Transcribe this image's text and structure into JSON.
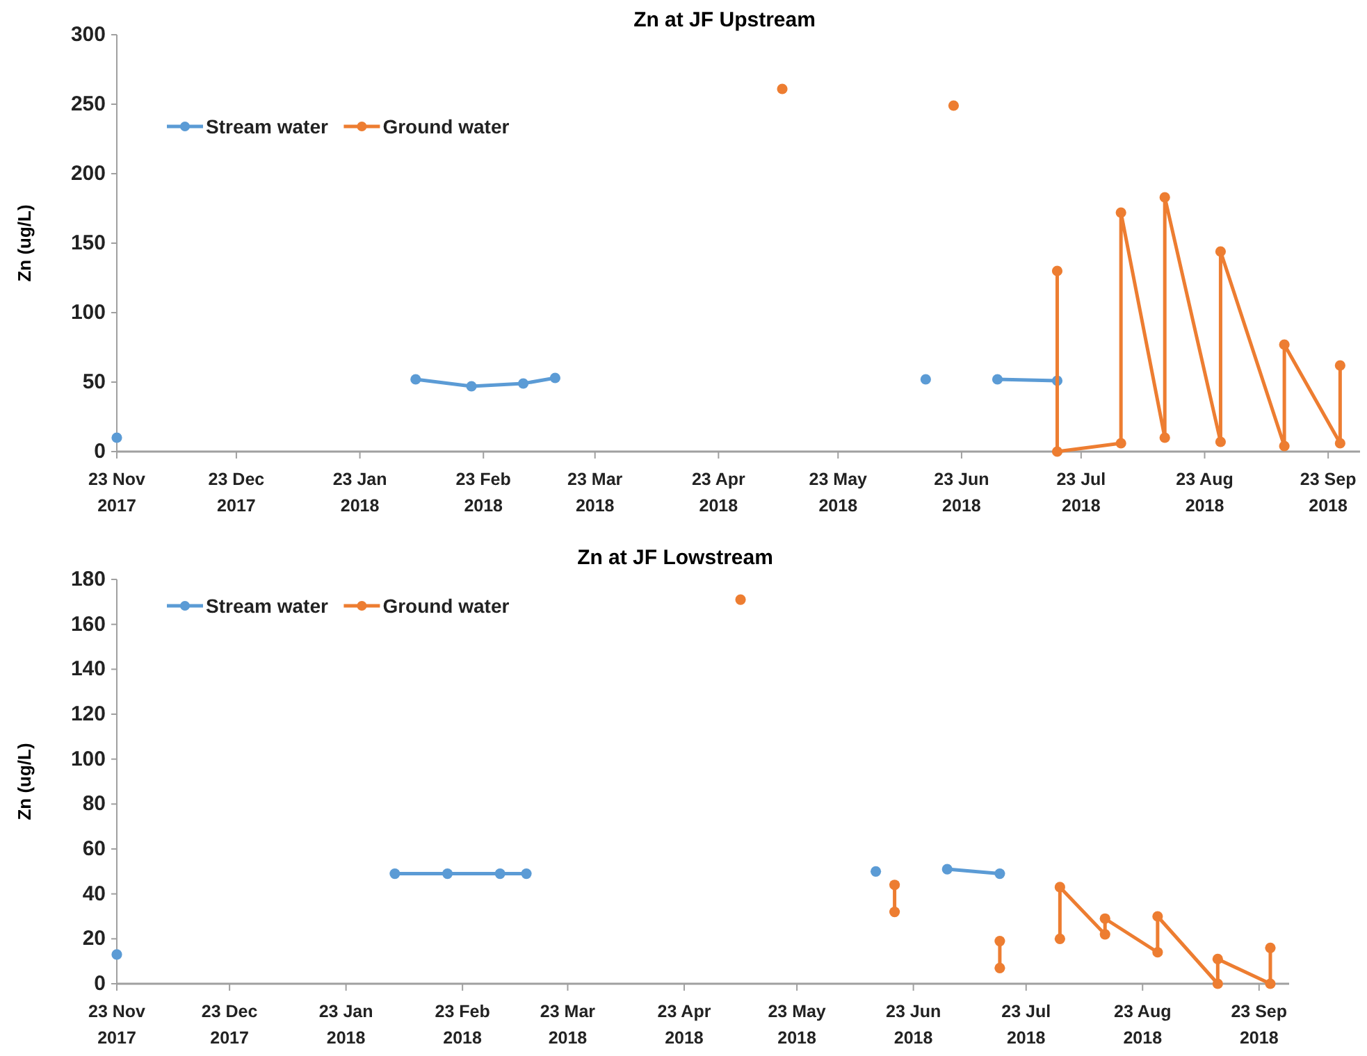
{
  "chart_data": [
    {
      "type": "line",
      "title": "Zn at JF Upstream",
      "ylabel": "Zn (ug/L)",
      "xlim": [
        "2017-11-23",
        "2018-10-01"
      ],
      "xticks": [
        {
          "value": "2017-11-23",
          "label": "23 Nov 2017"
        },
        {
          "value": "2017-12-23",
          "label": "23 Dec 2017"
        },
        {
          "value": "2018-01-23",
          "label": "23 Jan 2018"
        },
        {
          "value": "2018-02-23",
          "label": "23 Feb 2018"
        },
        {
          "value": "2018-03-23",
          "label": "23 Mar 2018"
        },
        {
          "value": "2018-04-23",
          "label": "23 Apr 2018"
        },
        {
          "value": "2018-05-23",
          "label": "23 May 2018"
        },
        {
          "value": "2018-06-23",
          "label": "23 Jun 2018"
        },
        {
          "value": "2018-07-23",
          "label": "23 Jul 2018"
        },
        {
          "value": "2018-08-23",
          "label": "23 Aug 2018"
        },
        {
          "value": "2018-09-23",
          "label": "23 Sep 2018"
        }
      ],
      "ylim": [
        0,
        300
      ],
      "yticks": [
        0,
        50,
        100,
        150,
        200,
        250,
        300
      ],
      "grid": false,
      "legend": "top left",
      "marker": "circle",
      "line_style": "solid",
      "series": [
        {
          "name": "Stream water",
          "color": "#5b9bd5",
          "x": [
            "2017-11-23",
            "2018-01-01",
            "2018-02-06",
            "2018-02-20",
            "2018-03-05",
            "2018-03-13",
            "2018-05-01",
            "2018-06-14",
            "2018-06-25",
            "2018-07-02",
            "2018-07-17"
          ],
          "values": [
            10,
            null,
            52,
            47,
            49,
            53,
            null,
            52,
            null,
            52,
            51
          ]
        },
        {
          "name": "Ground water",
          "color": "#ed7d31",
          "x": [
            "2018-05-09",
            "2018-06-01",
            "2018-06-21",
            "2018-07-01",
            "2018-07-17",
            "2018-07-17",
            "2018-08-02",
            "2018-08-02",
            "2018-08-13",
            "2018-08-13",
            "2018-08-27",
            "2018-08-27",
            "2018-09-12",
            "2018-09-12",
            "2018-09-26",
            "2018-09-26"
          ],
          "values": [
            261,
            null,
            249,
            null,
            130,
            0,
            6,
            172,
            10,
            183,
            7,
            144,
            4,
            77,
            6,
            62
          ]
        }
      ]
    },
    {
      "type": "line",
      "title": "Zn at JF Lowstream",
      "ylabel": "Zn (ug/L)",
      "xlim": [
        "2017-11-23",
        "2018-10-01"
      ],
      "xticks": [
        {
          "value": "2017-11-23",
          "label": "23 Nov 2017"
        },
        {
          "value": "2017-12-23",
          "label": "23 Dec 2017"
        },
        {
          "value": "2018-01-23",
          "label": "23 Jan 2018"
        },
        {
          "value": "2018-02-23",
          "label": "23 Feb 2018"
        },
        {
          "value": "2018-03-23",
          "label": "23 Mar 2018"
        },
        {
          "value": "2018-04-23",
          "label": "23 Apr 2018"
        },
        {
          "value": "2018-05-23",
          "label": "23 May 2018"
        },
        {
          "value": "2018-06-23",
          "label": "23 Jun 2018"
        },
        {
          "value": "2018-07-23",
          "label": "23 Jul 2018"
        },
        {
          "value": "2018-08-23",
          "label": "23 Aug 2018"
        },
        {
          "value": "2018-09-23",
          "label": "23 Sep 2018"
        }
      ],
      "ylim": [
        0,
        180
      ],
      "yticks": [
        0,
        20,
        40,
        60,
        80,
        100,
        120,
        140,
        160,
        180
      ],
      "grid": false,
      "legend": "top left",
      "marker": "circle",
      "line_style": "solid",
      "series": [
        {
          "name": "Stream water",
          "color": "#5b9bd5",
          "x": [
            "2017-11-23",
            "2018-01-01",
            "2018-02-05",
            "2018-02-19",
            "2018-03-05",
            "2018-03-12",
            "2018-05-01",
            "2018-06-13",
            "2018-06-25",
            "2018-07-02",
            "2018-07-16"
          ],
          "values": [
            13,
            null,
            49,
            49,
            49,
            49,
            null,
            50,
            null,
            51,
            49
          ]
        },
        {
          "name": "Ground water",
          "color": "#ed7d31",
          "x": [
            "2018-05-08",
            "2018-06-01",
            "2018-06-18",
            "2018-06-18",
            "2018-07-01",
            "2018-07-16",
            "2018-07-16",
            "2018-07-25",
            "2018-08-01",
            "2018-08-01",
            "2018-08-13",
            "2018-08-13",
            "2018-08-27",
            "2018-08-27",
            "2018-09-12",
            "2018-09-12",
            "2018-09-26",
            "2018-09-26"
          ],
          "values": [
            171,
            null,
            44,
            32,
            null,
            19,
            7,
            null,
            20,
            43,
            22,
            29,
            14,
            30,
            0,
            11,
            0,
            16
          ]
        }
      ]
    }
  ]
}
